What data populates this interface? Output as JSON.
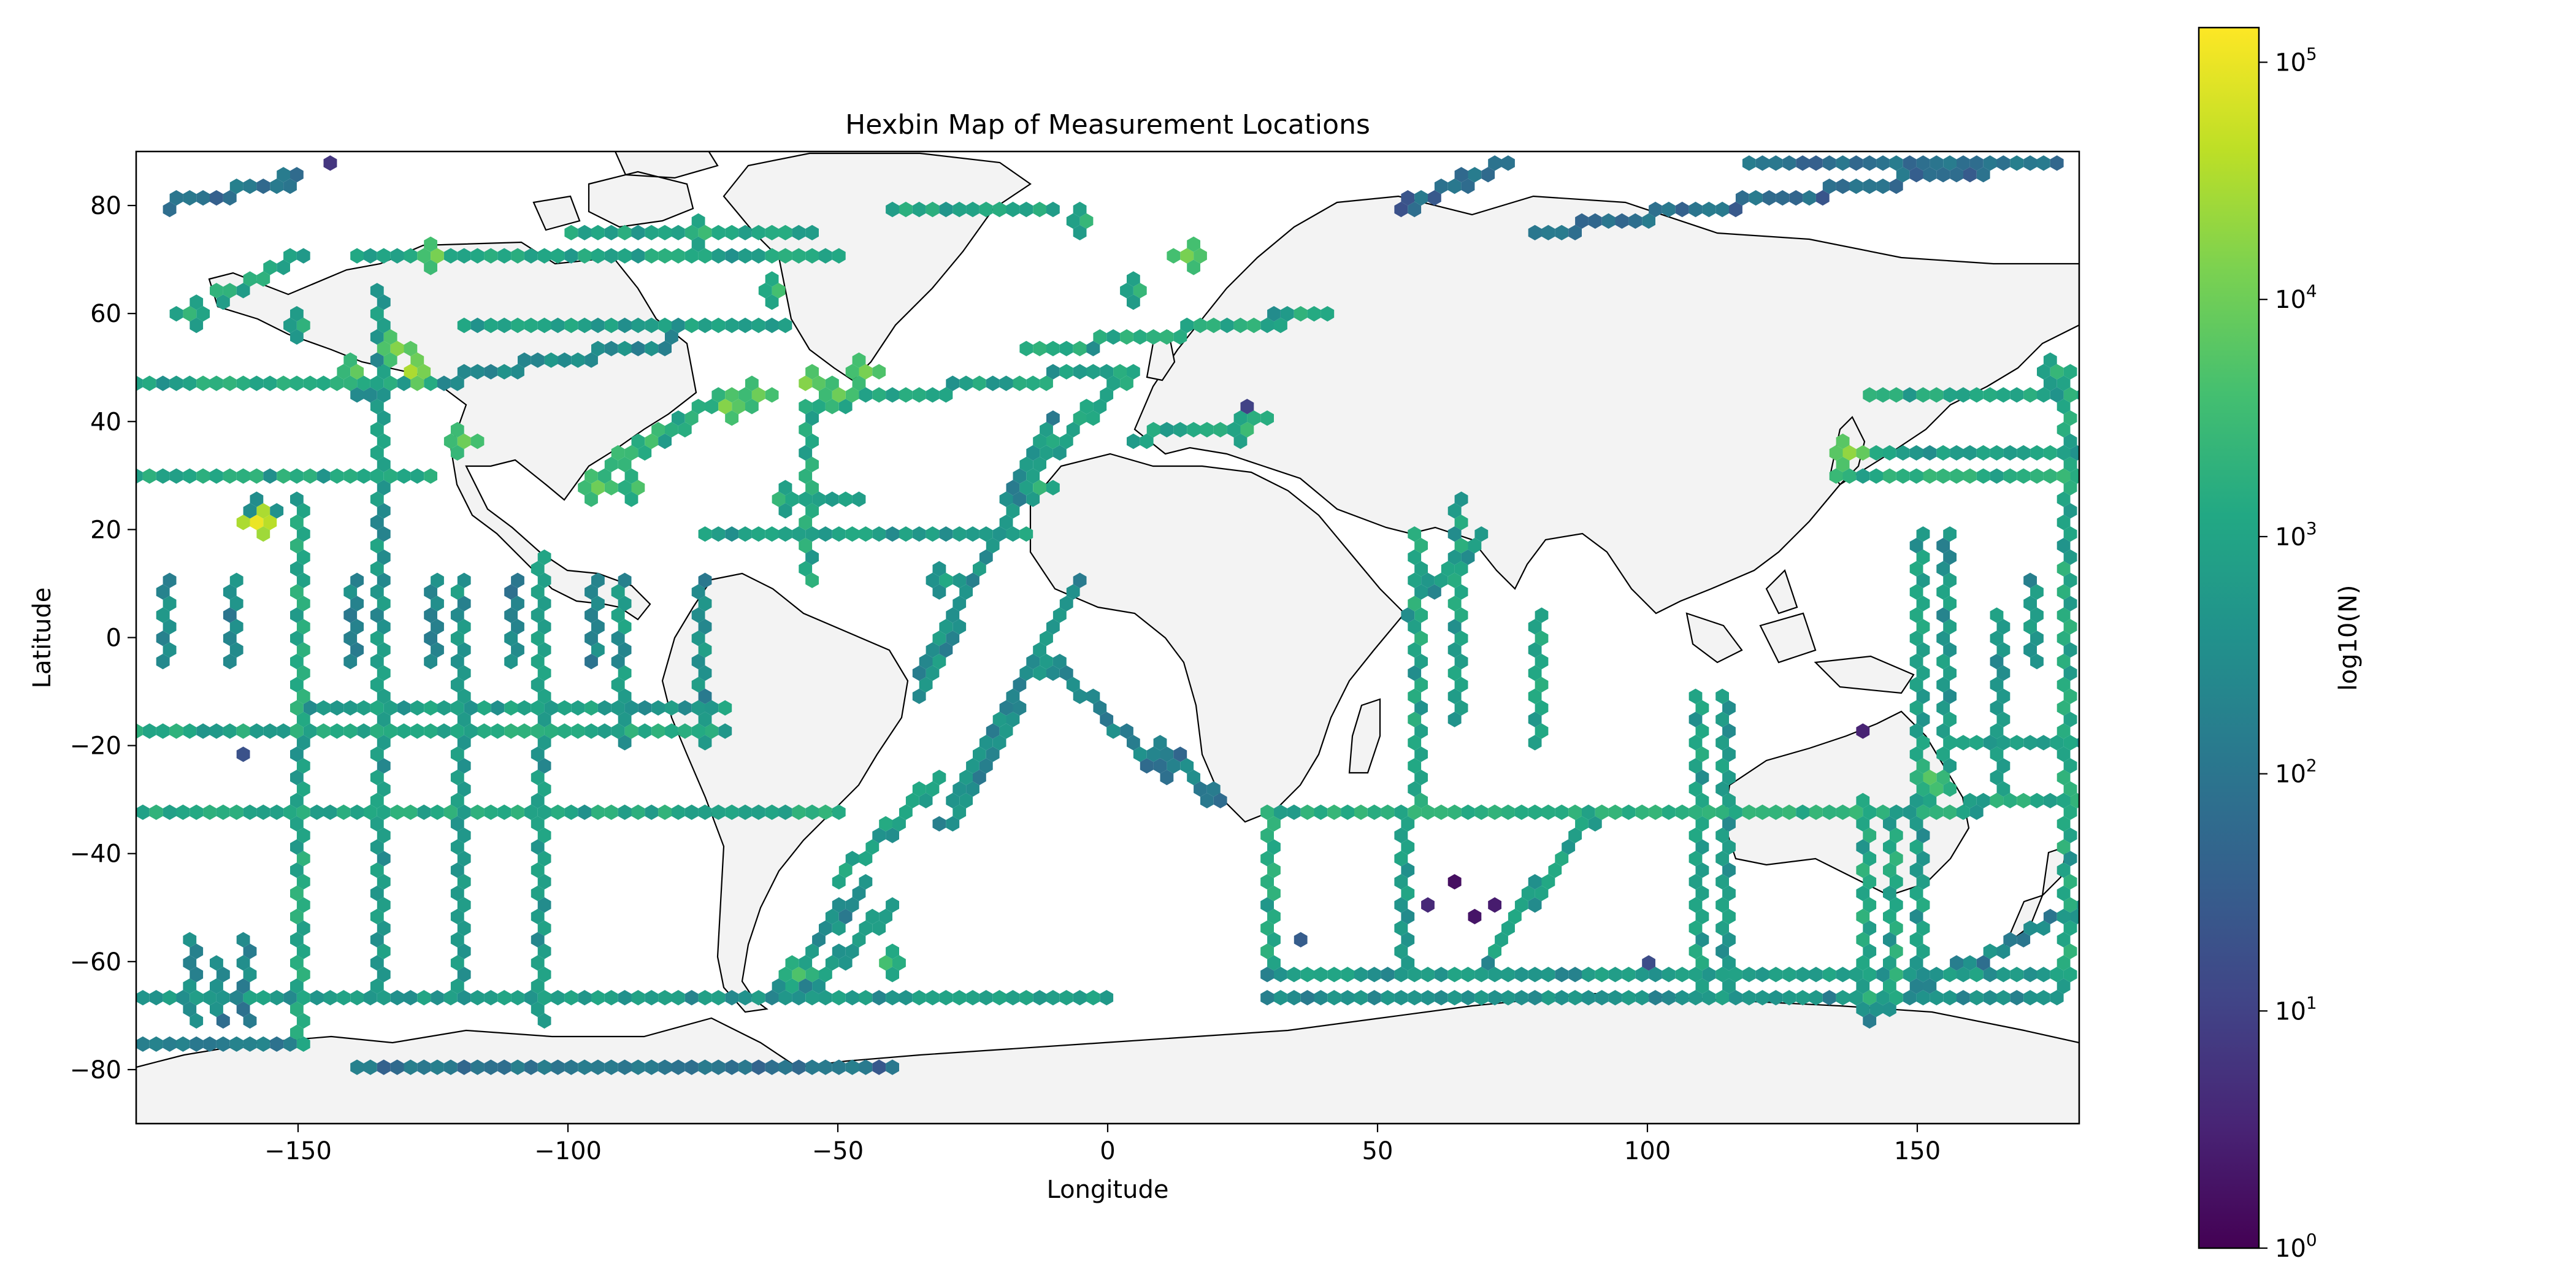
{
  "chart_data": {
    "type": "hexbin",
    "title": "Hexbin Map of Measurement Locations",
    "xlabel": "Longitude",
    "ylabel": "Latitude",
    "xlim": [
      -180,
      180
    ],
    "ylim": [
      -90,
      90
    ],
    "x_ticks": [
      -150,
      -100,
      -50,
      0,
      50,
      100,
      150
    ],
    "y_ticks": [
      -80,
      -60,
      -40,
      -20,
      0,
      20,
      40,
      60,
      80
    ],
    "grid": false,
    "colormap": "viridis",
    "colorbar": {
      "label": "log10(N)",
      "scale": "log",
      "range": [
        1,
        140000
      ],
      "ticks": [
        {
          "value": 1,
          "base": "10",
          "exp": "0"
        },
        {
          "value": 10,
          "base": "10",
          "exp": "1"
        },
        {
          "value": 100,
          "base": "10",
          "exp": "2"
        },
        {
          "value": 1000,
          "base": "10",
          "exp": "3"
        },
        {
          "value": 10000,
          "base": "10",
          "exp": "4"
        },
        {
          "value": 100000,
          "base": "10",
          "exp": "5"
        }
      ]
    },
    "tracks": [
      {
        "lon": [
          -180,
          0
        ],
        "lat": [
          -67,
          -67
        ],
        "level": 2.6
      },
      {
        "lon": [
          -180,
          -50
        ],
        "lat": [
          -33,
          -33
        ],
        "level": 2.9
      },
      {
        "lon": [
          -180,
          -70
        ],
        "lat": [
          -18,
          -18
        ],
        "level": 2.9
      },
      {
        "lon": [
          -150,
          -70
        ],
        "lat": [
          -12,
          -12
        ],
        "level": 2.7
      },
      {
        "lon": [
          -180,
          -125
        ],
        "lat": [
          30,
          30
        ],
        "level": 2.9
      },
      {
        "lon": [
          -180,
          -125
        ],
        "lat": [
          47,
          47
        ],
        "level": 2.9
      },
      {
        "lon": [
          -150,
          -150
        ],
        "lat": [
          -75,
          25
        ],
        "level": 2.9
      },
      {
        "lon": [
          -105,
          -105
        ],
        "lat": [
          -70,
          15
        ],
        "level": 2.6
      },
      {
        "lon": [
          -135,
          -135
        ],
        "lat": [
          -65,
          65
        ],
        "level": 2.6
      },
      {
        "lon": [
          -120,
          -120
        ],
        "lat": [
          -65,
          10
        ],
        "level": 2.5
      },
      {
        "lon": [
          -90,
          -90
        ],
        "lat": [
          -20,
          10
        ],
        "level": 2.6
      },
      {
        "lon": [
          -75,
          -75
        ],
        "lat": [
          -20,
          10
        ],
        "level": 2.5
      },
      {
        "lon": [
          -170,
          -170
        ],
        "lat": [
          -70,
          -55
        ],
        "level": 2.3
      },
      {
        "lon": [
          -165,
          -165
        ],
        "lat": [
          -70,
          -60
        ],
        "level": 2.2
      },
      {
        "lon": [
          -160,
          -160
        ],
        "lat": [
          -70,
          -55
        ],
        "level": 2.3
      },
      {
        "lon": [
          -175,
          -175
        ],
        "lat": [
          -5,
          10
        ],
        "level": 2.3
      },
      {
        "lon": [
          -162,
          -162
        ],
        "lat": [
          -5,
          10
        ],
        "level": 2.3
      },
      {
        "lon": [
          -140,
          -140
        ],
        "lat": [
          -5,
          10
        ],
        "level": 2.2
      },
      {
        "lon": [
          -125,
          -125
        ],
        "lat": [
          -5,
          10
        ],
        "level": 2.2
      },
      {
        "lon": [
          -110,
          -110
        ],
        "lat": [
          -5,
          10
        ],
        "level": 2.2
      },
      {
        "lon": [
          -95,
          -95
        ],
        "lat": [
          -5,
          10
        ],
        "level": 2.2
      },
      {
        "lon": [
          -95,
          -70
        ],
        "lat": [
          30,
          45
        ],
        "level": 3.2
      },
      {
        "lon": [
          -55,
          -55
        ],
        "lat": [
          10,
          40
        ],
        "level": 2.9
      },
      {
        "lon": [
          -50,
          -30
        ],
        "lat": [
          -45,
          -25
        ],
        "level": 2.8
      },
      {
        "lon": [
          -35,
          -10
        ],
        "lat": [
          -10,
          40
        ],
        "level": 2.5
      },
      {
        "lon": [
          -30,
          -5
        ],
        "lat": [
          -35,
          10
        ],
        "level": 2.4
      },
      {
        "lon": [
          -60,
          -45
        ],
        "lat": [
          25,
          25
        ],
        "level": 2.6
      },
      {
        "lon": [
          -75,
          -15
        ],
        "lat": [
          20,
          20
        ],
        "level": 2.7
      },
      {
        "lon": [
          -60,
          -45
        ],
        "lat": [
          -65,
          -45
        ],
        "level": 2.5
      },
      {
        "lon": [
          -55,
          -40
        ],
        "lat": [
          -65,
          -50
        ],
        "level": 2.6
      },
      {
        "lon": [
          -10,
          10
        ],
        "lat": [
          -5,
          -25
        ],
        "level": 2.2
      },
      {
        "lon": [
          10,
          20
        ],
        "lat": [
          -20,
          -30
        ],
        "level": 2.1
      },
      {
        "lon": [
          -120,
          -60
        ],
        "lat": [
          57,
          57
        ],
        "level": 2.7
      },
      {
        "lon": [
          -140,
          -50
        ],
        "lat": [
          70,
          70
        ],
        "level": 2.8
      },
      {
        "lon": [
          -165,
          -150
        ],
        "lat": [
          63,
          70
        ],
        "level": 2.9
      },
      {
        "lon": [
          -100,
          -55
        ],
        "lat": [
          75,
          75
        ],
        "level": 2.8
      },
      {
        "lon": [
          -15,
          40
        ],
        "lat": [
          53,
          60
        ],
        "level": 2.9
      },
      {
        "lon": [
          -15,
          5
        ],
        "lat": [
          30,
          50
        ],
        "level": 2.8
      },
      {
        "lon": [
          5,
          30
        ],
        "lat": [
          37,
          40
        ],
        "level": 2.8
      },
      {
        "lon": [
          -55,
          5
        ],
        "lat": [
          43,
          50
        ],
        "level": 2.8
      },
      {
        "lon": [
          30,
          30
        ],
        "lat": [
          -60,
          -33
        ],
        "level": 2.9
      },
      {
        "lon": [
          30,
          160
        ],
        "lat": [
          -33,
          -33
        ],
        "level": 3.0
      },
      {
        "lon": [
          30,
          175
        ],
        "lat": [
          -62,
          -62
        ],
        "level": 2.6
      },
      {
        "lon": [
          30,
          175
        ],
        "lat": [
          -66,
          -66
        ],
        "level": 2.4
      },
      {
        "lon": [
          55,
          55
        ],
        "lat": [
          -60,
          -33
        ],
        "level": 2.6
      },
      {
        "lon": [
          58,
          58
        ],
        "lat": [
          -30,
          20
        ],
        "level": 2.9
      },
      {
        "lon": [
          65,
          65
        ],
        "lat": [
          -15,
          25
        ],
        "level": 2.8
      },
      {
        "lon": [
          80,
          80
        ],
        "lat": [
          -20,
          5
        ],
        "level": 2.8
      },
      {
        "lon": [
          55,
          70
        ],
        "lat": [
          5,
          20
        ],
        "level": 2.6
      },
      {
        "lon": [
          70,
          90
        ],
        "lat": [
          -60,
          -33
        ],
        "level": 2.7
      },
      {
        "lon": [
          110,
          110
        ],
        "lat": [
          -67,
          -10
        ],
        "level": 2.8
      },
      {
        "lon": [
          115,
          115
        ],
        "lat": [
          -67,
          -10
        ],
        "level": 2.6
      },
      {
        "lon": [
          140,
          140
        ],
        "lat": [
          -67,
          -30
        ],
        "level": 2.9
      },
      {
        "lon": [
          145,
          145
        ],
        "lat": [
          -67,
          -35
        ],
        "level": 2.9
      },
      {
        "lon": [
          150,
          150
        ],
        "lat": [
          -60,
          20
        ],
        "level": 2.7
      },
      {
        "lon": [
          155,
          155
        ],
        "lat": [
          -25,
          20
        ],
        "level": 2.6
      },
      {
        "lon": [
          165,
          165
        ],
        "lat": [
          -30,
          5
        ],
        "level": 2.6
      },
      {
        "lon": [
          172,
          172
        ],
        "lat": [
          -5,
          10
        ],
        "level": 2.6
      },
      {
        "lon": [
          178,
          178
        ],
        "lat": [
          -65,
          50
        ],
        "level": 2.9
      },
      {
        "lon": [
          155,
          180
        ],
        "lat": [
          -20,
          -20
        ],
        "level": 2.6
      },
      {
        "lon": [
          160,
          180
        ],
        "lat": [
          -30,
          -30
        ],
        "level": 2.9
      },
      {
        "lon": [
          135,
          180
        ],
        "lat": [
          30,
          30
        ],
        "level": 3.0
      },
      {
        "lon": [
          135,
          180
        ],
        "lat": [
          35,
          35
        ],
        "level": 2.7
      },
      {
        "lon": [
          140,
          180
        ],
        "lat": [
          45,
          45
        ],
        "level": 2.9
      },
      {
        "lon": [
          140,
          180
        ],
        "lat": [
          -70,
          -50
        ],
        "level": 2.3
      },
      {
        "lon": [
          -140,
          -40
        ],
        "lat": [
          -80,
          -80
        ],
        "level": 1.8
      },
      {
        "lon": [
          -180,
          -150
        ],
        "lat": [
          -75,
          -75
        ],
        "level": 1.9
      },
      {
        "lon": [
          -175,
          -150
        ],
        "lat": [
          80,
          85
        ],
        "level": 1.8
      },
      {
        "lon": [
          -40,
          -10
        ],
        "lat": [
          80,
          80
        ],
        "level": 2.8
      },
      {
        "lon": [
          120,
          175
        ],
        "lat": [
          88,
          88
        ],
        "level": 1.8
      },
      {
        "lon": [
          80,
          170
        ],
        "lat": [
          75,
          88
        ],
        "level": 1.7
      },
      {
        "lon": [
          55,
          75
        ],
        "lat": [
          80,
          88
        ],
        "level": 1.7
      },
      {
        "lon": [
          -140,
          -80
        ],
        "lat": [
          45,
          55
        ],
        "level": 2.3
      }
    ],
    "hotspots": [
      {
        "lon": -128,
        "lat": 50,
        "level": 4.5
      },
      {
        "lon": -132,
        "lat": 53,
        "level": 4.2
      },
      {
        "lon": -140,
        "lat": 50,
        "level": 3.9
      },
      {
        "lon": -125,
        "lat": 71,
        "level": 4.1
      },
      {
        "lon": -120,
        "lat": 37,
        "level": 4.0
      },
      {
        "lon": -95,
        "lat": 28,
        "level": 4.0
      },
      {
        "lon": -88,
        "lat": 28,
        "level": 3.7
      },
      {
        "lon": -70,
        "lat": 42,
        "level": 4.2
      },
      {
        "lon": -65,
        "lat": 45,
        "level": 4.0
      },
      {
        "lon": -55,
        "lat": 48,
        "level": 4.2
      },
      {
        "lon": -50,
        "lat": 45,
        "level": 4.0
      },
      {
        "lon": -45,
        "lat": 49,
        "level": 4.1
      },
      {
        "lon": -62,
        "lat": 64,
        "level": 3.6
      },
      {
        "lon": -75,
        "lat": 75,
        "level": 3.5
      },
      {
        "lon": 15,
        "lat": 70,
        "level": 4.1
      },
      {
        "lon": -5,
        "lat": 78,
        "level": 3.4
      },
      {
        "lon": 137,
        "lat": 35,
        "level": 4.3
      },
      {
        "lon": 152,
        "lat": -25,
        "level": 3.8
      },
      {
        "lon": 153,
        "lat": -28,
        "level": 3.6
      },
      {
        "lon": -58,
        "lat": -62,
        "level": 3.7
      },
      {
        "lon": -40,
        "lat": -60,
        "level": 3.6
      },
      {
        "lon": -157,
        "lat": 21,
        "level": 5.0
      },
      {
        "lon": -157,
        "lat": 24,
        "level": 3.0
      },
      {
        "lon": 25,
        "lat": 38,
        "level": 3.5
      },
      {
        "lon": -60,
        "lat": 25,
        "level": 3.4
      },
      {
        "lon": -30,
        "lat": 10,
        "level": 3.1
      },
      {
        "lon": -13,
        "lat": 28,
        "level": 3.4
      },
      {
        "lon": 5,
        "lat": 65,
        "level": 3.4
      },
      {
        "lon": -170,
        "lat": 60,
        "level": 3.4
      },
      {
        "lon": -150,
        "lat": 58,
        "level": 3.3
      },
      {
        "lon": 175,
        "lat": 50,
        "level": 3.4
      }
    ],
    "sparse_bins": [
      {
        "lon": 67,
        "lat": 83,
        "level": 0.1
      },
      {
        "lon": 68,
        "lat": -52,
        "level": 0.3
      },
      {
        "lon": 65,
        "lat": -45,
        "level": 0.2
      },
      {
        "lon": 72,
        "lat": -50,
        "level": 0.4
      },
      {
        "lon": 60,
        "lat": -50,
        "level": 0.6
      },
      {
        "lon": -90,
        "lat": 31,
        "level": 0.5
      },
      {
        "lon": 140,
        "lat": -17,
        "level": 0.5
      },
      {
        "lon": 110,
        "lat": 80,
        "level": 0.8
      },
      {
        "lon": -145,
        "lat": 87,
        "level": 0.8
      },
      {
        "lon": 25,
        "lat": 42,
        "level": 1.0
      },
      {
        "lon": -160,
        "lat": -22,
        "level": 1.3
      },
      {
        "lon": 35,
        "lat": -55,
        "level": 1.5
      },
      {
        "lon": 100,
        "lat": -60,
        "level": 1.2
      }
    ]
  }
}
